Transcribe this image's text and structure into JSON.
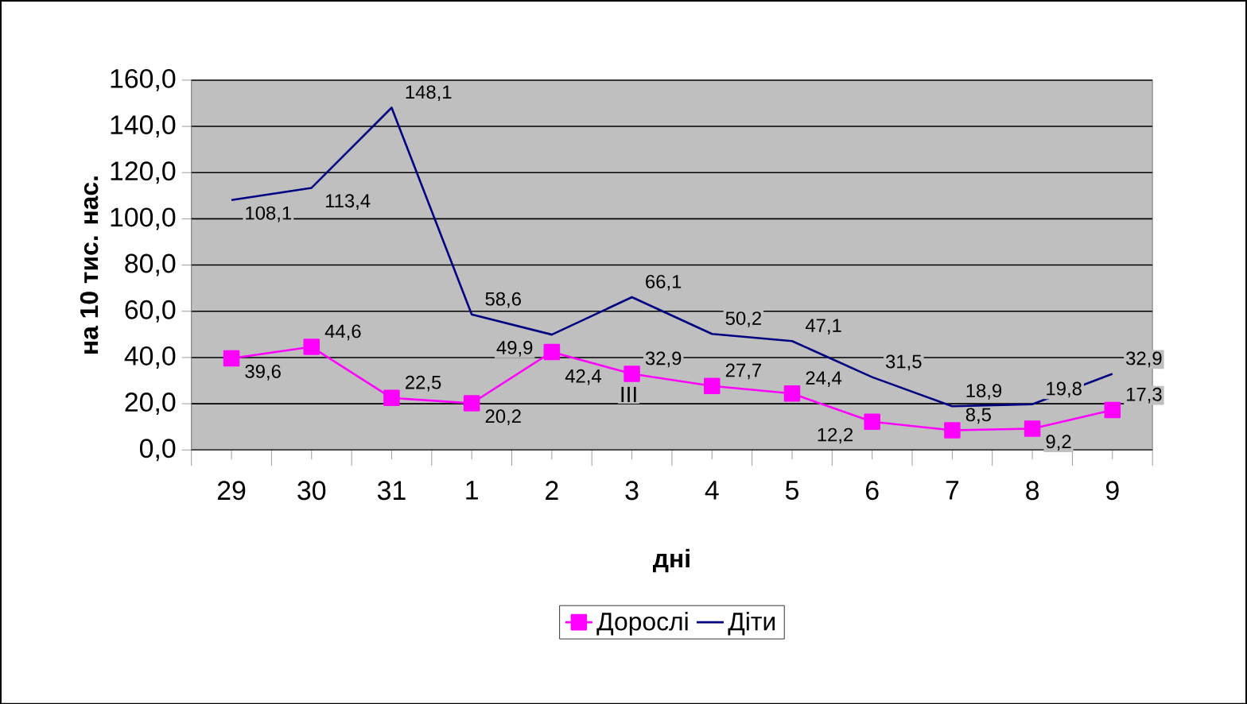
{
  "chart_data": {
    "type": "line",
    "xlabel": "дні",
    "ylabel": "на 10 тис. нас.",
    "categories": [
      "29",
      "30",
      "31",
      "1",
      "2",
      "3",
      "4",
      "5",
      "6",
      "7",
      "8",
      "9"
    ],
    "series": [
      {
        "name": "Дорослі",
        "color": "#ff00ff",
        "marker": "square",
        "values": [
          39.6,
          44.6,
          22.5,
          20.2,
          42.4,
          32.9,
          27.7,
          24.4,
          12.2,
          8.5,
          9.2,
          17.3
        ],
        "value_labels": [
          "39,6",
          "44,6",
          "22,5",
          "20,2",
          "42,4",
          "32,9",
          "27,7",
          "24,4",
          "12,2",
          "8,5",
          "9,2",
          "17,3"
        ]
      },
      {
        "name": "Діти",
        "color": "#000080",
        "marker": "none",
        "values": [
          108.1,
          113.4,
          148.1,
          58.6,
          49.9,
          66.1,
          50.2,
          47.1,
          31.5,
          18.9,
          19.8,
          32.9
        ],
        "value_labels": [
          "108,1",
          "113,4",
          "148,1",
          "58,6",
          "49,9",
          "66,1",
          "50,2",
          "47,1",
          "31,5",
          "18,9",
          "19,8",
          "32,9"
        ]
      }
    ],
    "ylim": [
      0,
      160
    ],
    "yticks": [
      {
        "value": 0,
        "label": "0,0"
      },
      {
        "value": 20,
        "label": "20,0"
      },
      {
        "value": 40,
        "label": "40,0"
      },
      {
        "value": 60,
        "label": "60,0"
      },
      {
        "value": 80,
        "label": "80,0"
      },
      {
        "value": 100,
        "label": "100,0"
      },
      {
        "value": 120,
        "label": "120,0"
      },
      {
        "value": 140,
        "label": "140,0"
      },
      {
        "value": 160,
        "label": "160,0"
      }
    ],
    "annotations": [
      "III"
    ],
    "grid": "y",
    "legend": "bottom",
    "line_style": "solid"
  }
}
